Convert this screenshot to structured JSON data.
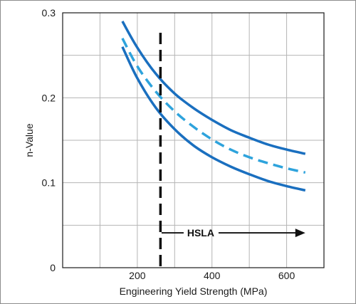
{
  "chart_data": {
    "type": "line",
    "title": "",
    "xlabel": "Engineering Yield Strength (MPa)",
    "ylabel": "n-Value",
    "xlim": [
      0,
      700
    ],
    "ylim": [
      0,
      0.3
    ],
    "x_ticks": [
      200,
      400,
      600
    ],
    "x_tick_labels": [
      "200",
      "400",
      "600"
    ],
    "y_ticks": [
      0,
      0.1,
      0.2,
      0.3
    ],
    "y_tick_labels": [
      "0",
      "0.1",
      "0.2",
      "0.3"
    ],
    "grid": true,
    "series": [
      {
        "style": "solid",
        "color": "#1a6fbf",
        "x": [
          160,
          200,
          250,
          300,
          350,
          400,
          450,
          500,
          550,
          600,
          650
        ],
        "y": [
          0.29,
          0.259,
          0.228,
          0.205,
          0.188,
          0.174,
          0.162,
          0.153,
          0.145,
          0.139,
          0.134
        ]
      },
      {
        "style": "dashed",
        "color": "#2ea3dc",
        "x": [
          160,
          200,
          250,
          300,
          350,
          400,
          450,
          500,
          550,
          600,
          650
        ],
        "y": [
          0.27,
          0.237,
          0.207,
          0.184,
          0.166,
          0.151,
          0.139,
          0.13,
          0.123,
          0.117,
          0.112
        ]
      },
      {
        "style": "solid",
        "color": "#1a6fbf",
        "x": [
          160,
          200,
          250,
          300,
          350,
          400,
          450,
          500,
          550,
          600,
          650
        ],
        "y": [
          0.26,
          0.223,
          0.188,
          0.163,
          0.144,
          0.13,
          0.119,
          0.11,
          0.102,
          0.096,
          0.091
        ]
      }
    ],
    "vline": {
      "x": 262,
      "style": "dashed",
      "color": "#111111"
    },
    "annotation": {
      "text": "HSLA",
      "arrow_from": 265,
      "arrow_to": 650,
      "y": 0.041
    }
  }
}
